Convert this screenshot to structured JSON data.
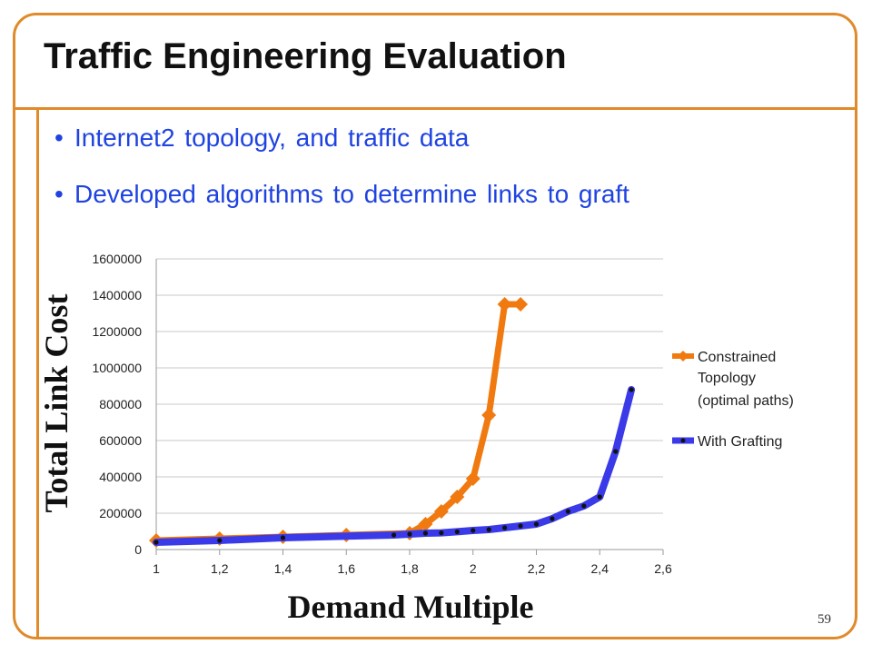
{
  "slide": {
    "title": "Traffic Engineering Evaluation",
    "bullets": [
      "Internet2 topology, and traffic data",
      "Developed algorithms to determine links to graft"
    ],
    "page_number": "59",
    "accent_color": "#e08a2a",
    "bullet_color": "#1f43e0"
  },
  "chart_data": {
    "type": "line",
    "xlabel": "Demand Multiple",
    "ylabel": "Total Link Cost",
    "xlim": [
      1,
      2.6
    ],
    "ylim": [
      0,
      1600000
    ],
    "x_ticks": [
      1,
      1.2,
      1.4,
      1.6,
      1.8,
      2,
      2.2,
      2.4,
      2.6
    ],
    "x_tick_labels": [
      "1",
      "1,2",
      "1,4",
      "1,6",
      "1,8",
      "2",
      "2,2",
      "2,4",
      "2,6"
    ],
    "y_ticks": [
      0,
      200000,
      400000,
      600000,
      800000,
      1000000,
      1200000,
      1400000,
      1600000
    ],
    "y_tick_labels": [
      "0",
      "200000",
      "400000",
      "600000",
      "800000",
      "1000000",
      "1200000",
      "1400000",
      "1600000"
    ],
    "grid": "horizontal",
    "legend_position": "right",
    "series": [
      {
        "name": "Constrained Topology (optimal paths)",
        "legend_lines": [
          "Constrained",
          "Topology",
          "(optimal paths)"
        ],
        "color": "#f07a10",
        "marker": "diamond",
        "x": [
          1,
          1.2,
          1.4,
          1.6,
          1.8,
          1.85,
          1.9,
          1.95,
          2,
          2.05,
          2.1,
          2.15
        ],
        "y": [
          50000,
          60000,
          70000,
          80000,
          90000,
          140000,
          210000,
          290000,
          390000,
          740000,
          1350000,
          1350000
        ]
      },
      {
        "name": "With Grafting",
        "legend_lines": [
          "With Grafting"
        ],
        "color": "#3a3ae8",
        "marker": "dot",
        "x": [
          1,
          1.2,
          1.4,
          1.75,
          1.8,
          1.85,
          1.9,
          1.95,
          2,
          2.05,
          2.1,
          2.15,
          2.2,
          2.25,
          2.3,
          2.35,
          2.4,
          2.45,
          2.5
        ],
        "y": [
          40000,
          50000,
          65000,
          80000,
          85000,
          90000,
          92000,
          98000,
          105000,
          110000,
          120000,
          130000,
          140000,
          170000,
          210000,
          240000,
          290000,
          540000,
          880000
        ]
      }
    ]
  }
}
